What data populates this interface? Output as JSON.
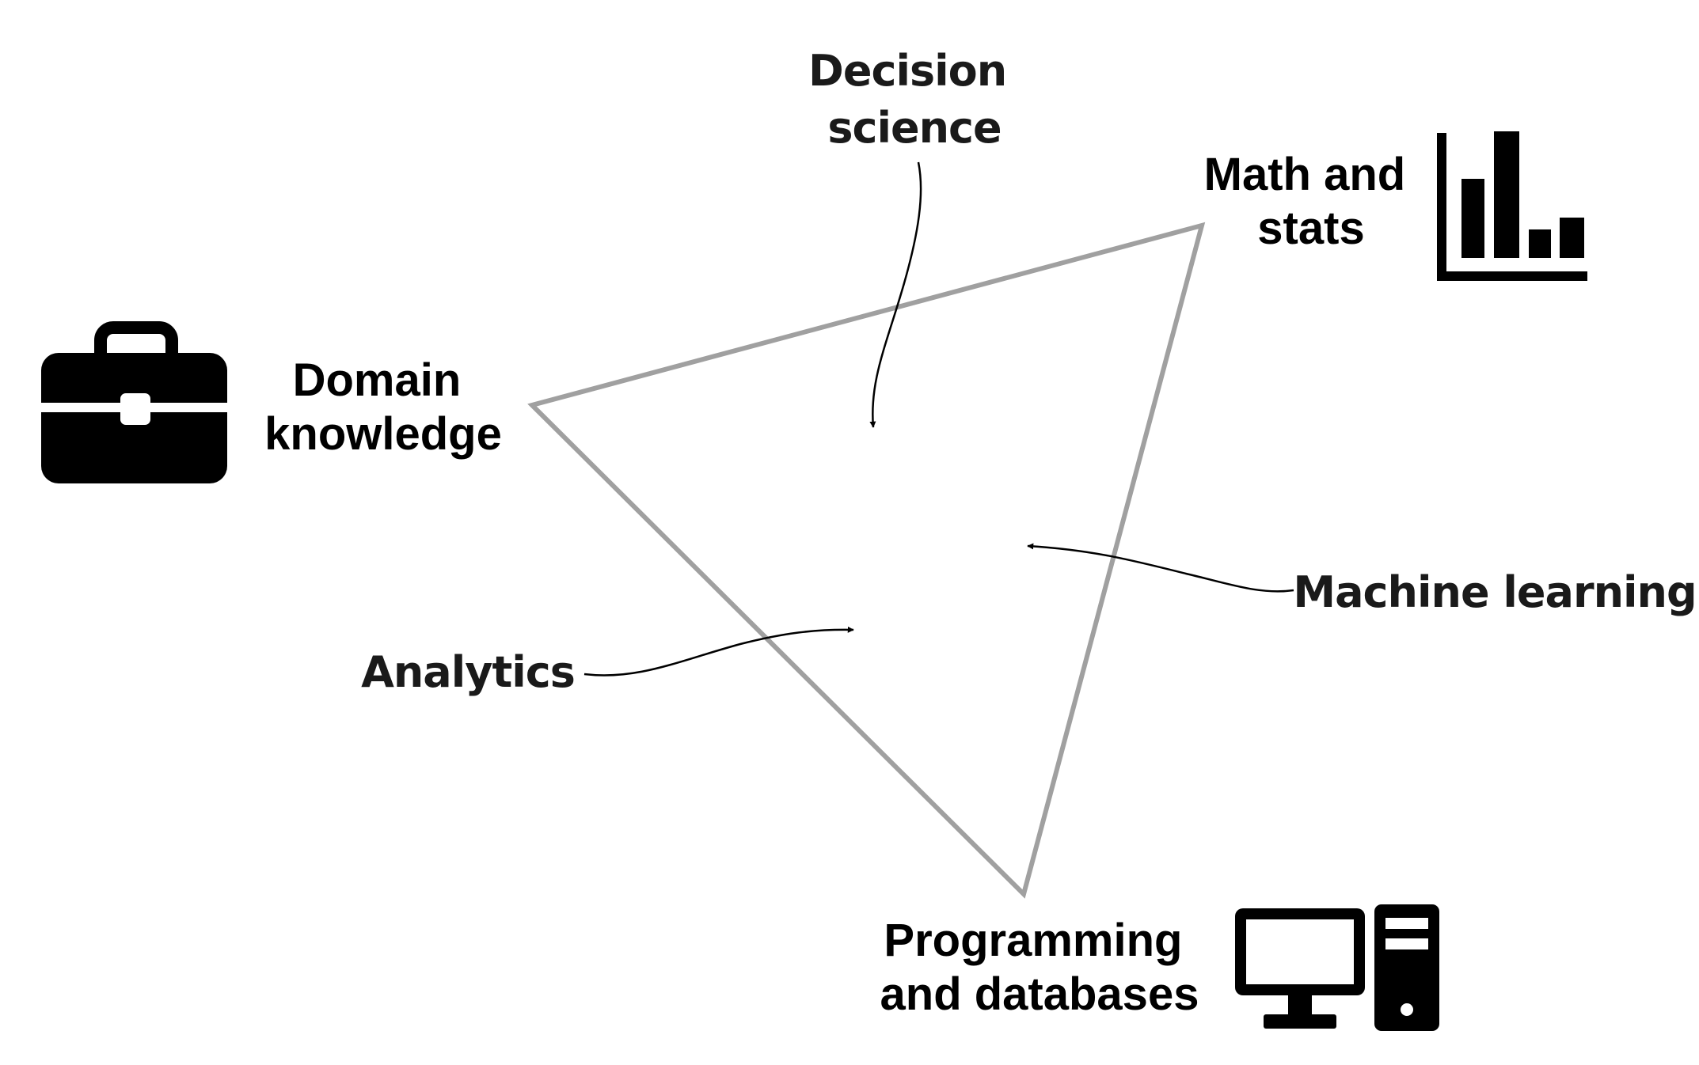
{
  "diagram": {
    "vertices": {
      "domain": {
        "line1": "Domain",
        "line2": "knowledge",
        "icon": "briefcase-icon"
      },
      "math": {
        "line1": "Math and",
        "line2": "stats",
        "icon": "bar-chart-icon"
      },
      "programming": {
        "line1": "Programming",
        "line2": "and databases",
        "icon": "desktop-computer-icon"
      }
    },
    "regions": {
      "decision": {
        "line1": "Decision",
        "line2": "science"
      },
      "ml": {
        "label": "Machine learning"
      },
      "analytics": {
        "label": "Analytics"
      }
    },
    "colors": {
      "triangle_stroke": "#a0a0a0",
      "ink": "#000000"
    }
  }
}
